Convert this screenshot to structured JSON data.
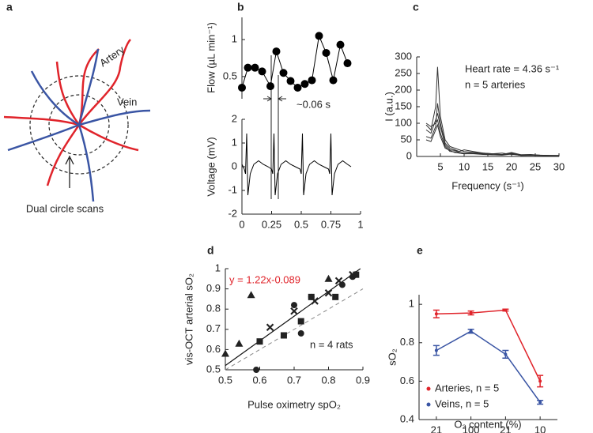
{
  "diagram": {
    "panel_label": "a",
    "artery": "Artery",
    "vein": "Vein",
    "caption": "Dual circle scans"
  },
  "chart_data": [
    {
      "type": "line",
      "panel_label": "b",
      "ylabel": "Flow (µL min⁻¹)",
      "annotation": "~0.06 s",
      "x": [
        0,
        0.05,
        0.11,
        0.17,
        0.24,
        0.29,
        0.35,
        0.41,
        0.47,
        0.53,
        0.59,
        0.65,
        0.71,
        0.77,
        0.83,
        0.89
      ],
      "xlim": [
        0,
        1
      ],
      "ylim": [
        0.2,
        1.3
      ],
      "yticks": [
        0.5,
        1
      ],
      "series": [
        {
          "color": "#000000",
          "markers": true,
          "values": [
            0.35,
            0.62,
            0.62,
            0.57,
            0.37,
            0.84,
            0.55,
            0.44,
            0.35,
            0.4,
            0.45,
            1.05,
            0.82,
            0.45,
            0.93,
            0.68
          ]
        }
      ]
    },
    {
      "type": "line",
      "ylabel": "Voltage (mV)",
      "x": [
        0,
        0.02,
        0.03,
        0.04,
        0.05,
        0.07,
        0.1,
        0.14,
        0.18,
        0.22,
        0.25,
        0.26,
        0.27,
        0.28,
        0.3,
        0.33,
        0.37,
        0.41,
        0.45,
        0.49,
        0.5,
        0.51,
        0.52,
        0.54,
        0.57,
        0.61,
        0.65,
        0.69,
        0.73,
        0.74,
        0.75,
        0.76,
        0.78,
        0.81,
        0.85,
        0.89,
        0.92
      ],
      "xlim": [
        0,
        1
      ],
      "xticks": [
        0,
        0.25,
        0.5,
        0.75,
        1
      ],
      "ylim": [
        -2,
        2
      ],
      "yticks": [
        -2,
        -1,
        0,
        1,
        2
      ],
      "series": [
        {
          "color": "#000000",
          "values": [
            0.1,
            -0.1,
            -0.3,
            1.4,
            -1.2,
            -0.3,
            0.1,
            0.25,
            0.1,
            0,
            -0.1,
            -0.3,
            1.4,
            -1.2,
            -0.3,
            0.1,
            0.25,
            0.1,
            0,
            -0.1,
            -0.3,
            1.4,
            -1.2,
            -0.3,
            0.1,
            0.25,
            0.1,
            0,
            -0.1,
            -0.3,
            1.4,
            -1.2,
            -0.3,
            0.1,
            0.25,
            0.1,
            0
          ]
        }
      ]
    },
    {
      "type": "line",
      "panel_label": "c",
      "xlabel": "Frequency (s⁻¹)",
      "ylabel": "I (a.u.)",
      "annotations": [
        "Heart rate = 4.36 s⁻¹",
        "n = 5 arteries"
      ],
      "x": [
        2,
        3,
        4,
        4.4,
        5,
        6,
        7,
        8,
        9,
        10,
        12,
        14,
        16,
        18,
        20,
        22,
        24,
        26,
        28,
        30
      ],
      "xlim": [
        0,
        30
      ],
      "xticks": [
        5,
        10,
        15,
        20,
        25,
        30
      ],
      "ylim": [
        0,
        300
      ],
      "yticks": [
        0,
        50,
        100,
        150,
        200,
        250,
        300
      ],
      "series": [
        {
          "color": "#333333",
          "values": [
            95,
            80,
            150,
            270,
            120,
            50,
            30,
            25,
            20,
            15,
            12,
            10,
            8,
            10,
            6,
            5,
            5,
            4,
            3,
            3
          ]
        },
        {
          "color": "#333333",
          "values": [
            60,
            55,
            90,
            160,
            100,
            40,
            25,
            20,
            15,
            20,
            15,
            10,
            8,
            6,
            12,
            5,
            6,
            4,
            3,
            3
          ]
        },
        {
          "color": "#333333",
          "values": [
            80,
            70,
            110,
            130,
            90,
            35,
            20,
            18,
            12,
            10,
            10,
            8,
            6,
            5,
            10,
            4,
            4,
            3,
            3,
            2
          ]
        },
        {
          "color": "#333333",
          "values": [
            100,
            90,
            100,
            110,
            70,
            30,
            15,
            14,
            10,
            8,
            8,
            6,
            5,
            5,
            8,
            3,
            3,
            3,
            2,
            2
          ]
        },
        {
          "color": "#333333",
          "values": [
            50,
            45,
            80,
            95,
            60,
            25,
            18,
            12,
            10,
            8,
            9,
            7,
            5,
            4,
            7,
            3,
            4,
            3,
            2,
            2
          ]
        }
      ]
    },
    {
      "type": "scatter",
      "panel_label": "d",
      "xlabel": "Pulse oximetry spO₂",
      "ylabel": "vis-OCT arterial sO₂",
      "annotation": "n = 4 rats",
      "fit": {
        "slope": 1.22,
        "intercept": -0.089,
        "label": "y = 1.22x-0.089",
        "color": "#e0242b"
      },
      "xlim": [
        0.5,
        0.9
      ],
      "xticks": [
        0.5,
        0.6,
        0.7,
        0.8,
        0.9
      ],
      "ylim": [
        0.5,
        1
      ],
      "yticks": [
        0.5,
        0.6,
        0.7,
        0.8,
        0.9,
        1
      ],
      "series": [
        {
          "marker": "triangle",
          "color": "#222222",
          "x": [
            0.5,
            0.54,
            0.575,
            0.8
          ],
          "values": [
            0.58,
            0.63,
            0.87,
            0.95
          ]
        },
        {
          "marker": "circle",
          "color": "#222222",
          "x": [
            0.59,
            0.7,
            0.72,
            0.75,
            0.84,
            0.87
          ],
          "values": [
            0.5,
            0.82,
            0.68,
            0.86,
            0.92,
            0.96
          ]
        },
        {
          "marker": "square",
          "color": "#222222",
          "x": [
            0.6,
            0.67,
            0.72,
            0.75,
            0.82,
            0.88
          ],
          "values": [
            0.64,
            0.67,
            0.74,
            0.86,
            0.86,
            0.97
          ]
        },
        {
          "marker": "x",
          "color": "#222222",
          "x": [
            0.63,
            0.7,
            0.76,
            0.8,
            0.83,
            0.87
          ],
          "values": [
            0.71,
            0.79,
            0.84,
            0.88,
            0.94,
            0.97
          ]
        }
      ]
    },
    {
      "type": "line",
      "panel_label": "e",
      "xlabel": "O₂ content (%)",
      "ylabel": "sO₂",
      "legend": "lower left",
      "categories": [
        "21",
        "100",
        "21",
        "10"
      ],
      "ylim": [
        0.4,
        1.05
      ],
      "yticks": [
        0.4,
        0.6,
        0.8,
        1
      ],
      "series": [
        {
          "name": "Arteries, n = 5",
          "color": "#e0242b",
          "values": [
            0.95,
            0.955,
            0.97,
            0.6
          ],
          "errors": [
            0.02,
            0.01,
            0.005,
            0.03
          ]
        },
        {
          "name": "Veins, n = 5",
          "color": "#3a55a4",
          "values": [
            0.76,
            0.86,
            0.74,
            0.49
          ],
          "errors": [
            0.025,
            0.01,
            0.02,
            0.01
          ]
        }
      ]
    }
  ]
}
